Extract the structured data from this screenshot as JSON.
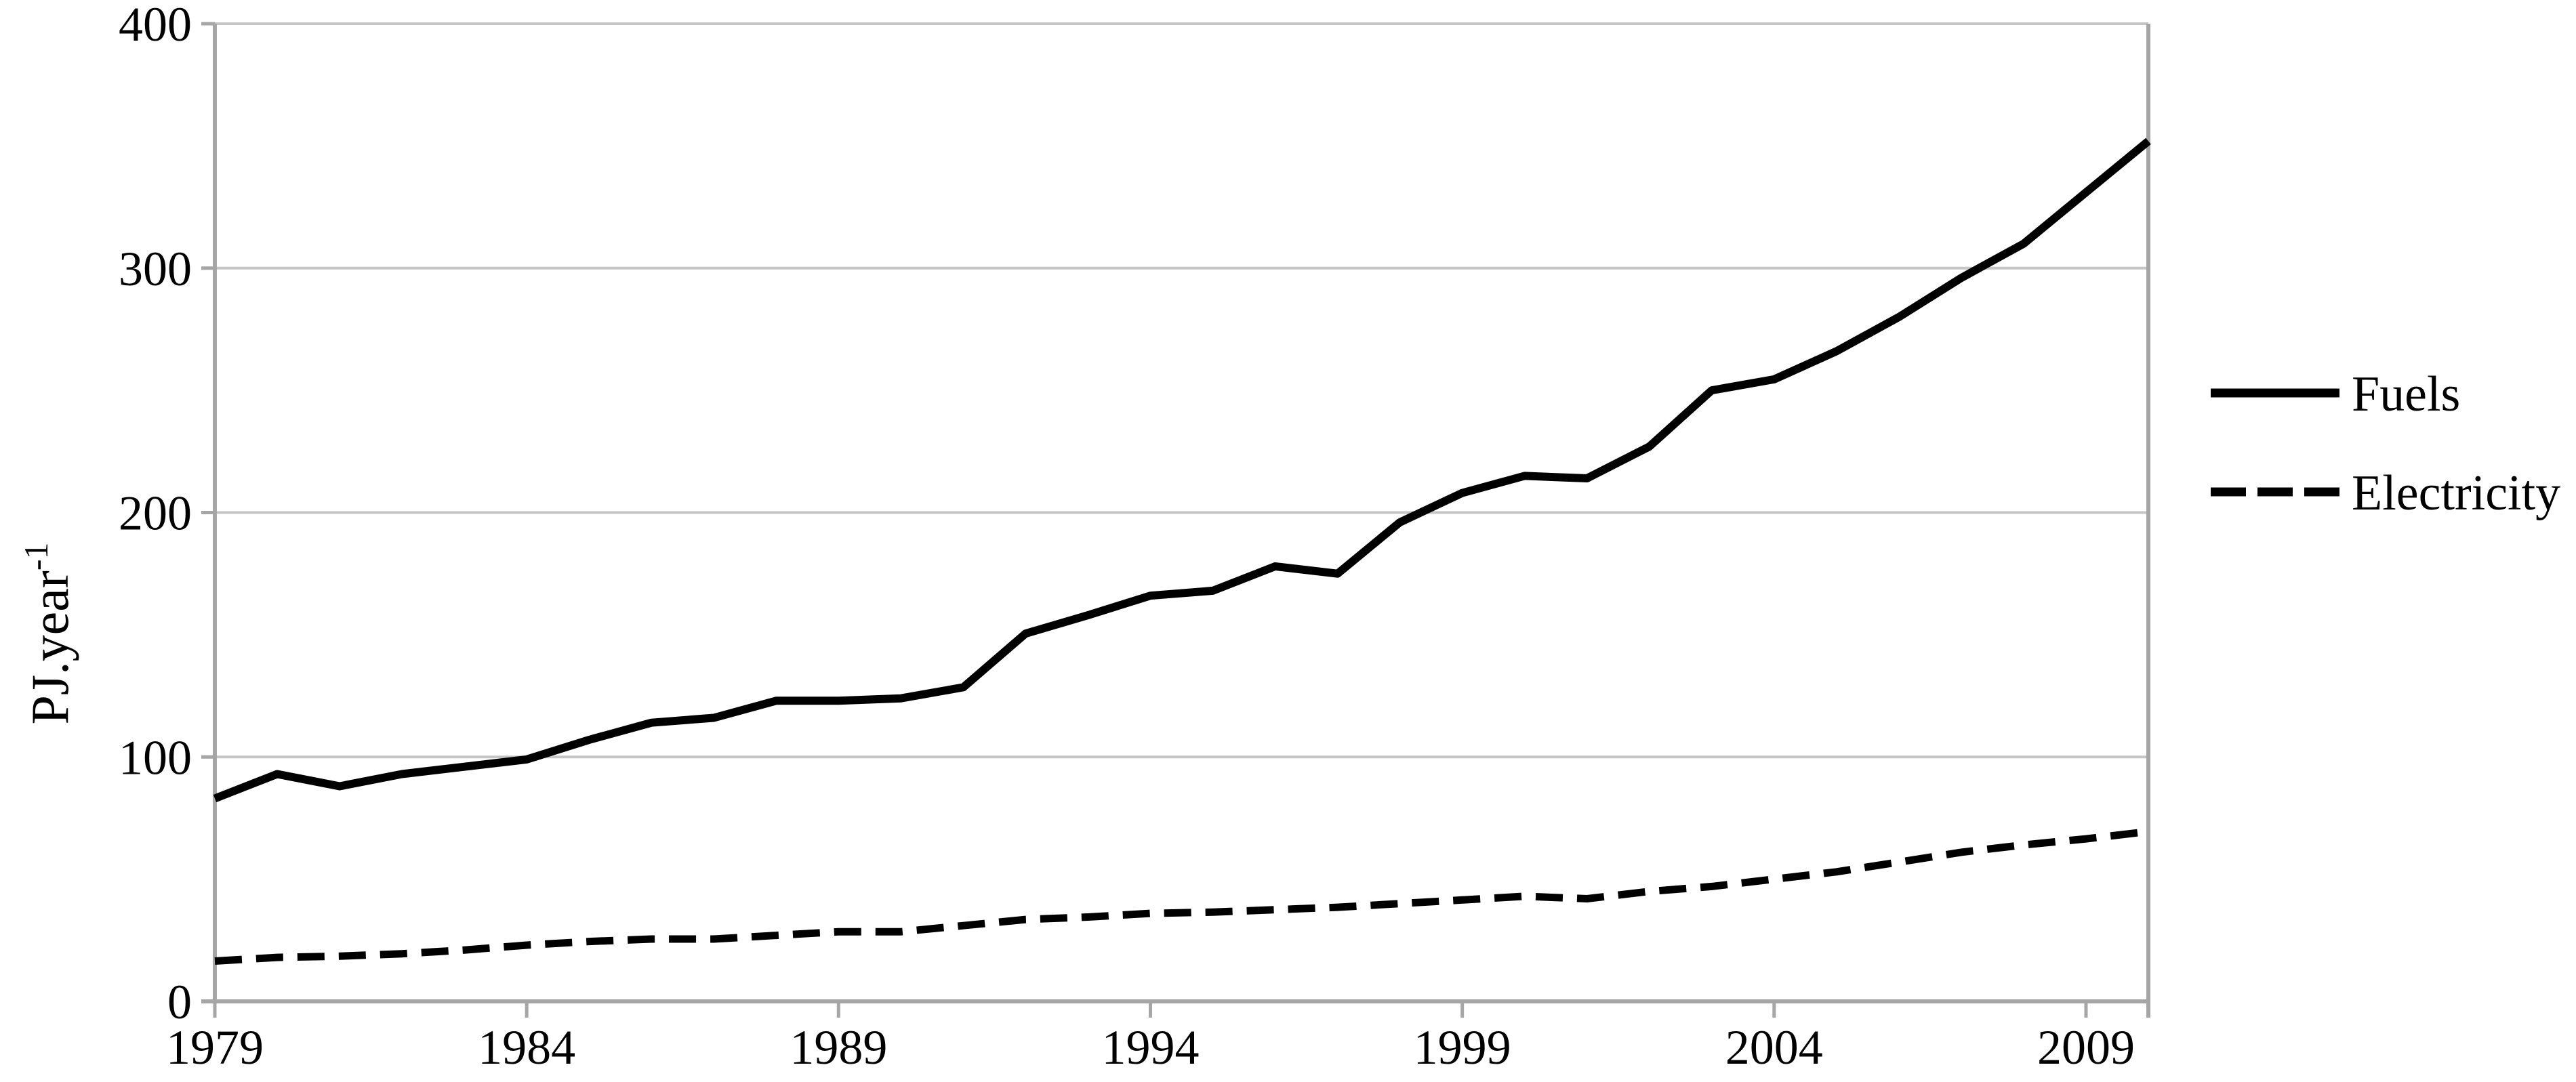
{
  "figure": {
    "background": "#ffffff"
  },
  "colors": {
    "axis": "#a6a6a6",
    "gridline": "#c6c6c6",
    "series_line": "#000000",
    "text": "#000000"
  },
  "chart_data": {
    "type": "line",
    "title": "",
    "xlabel": "",
    "ylabel": {
      "base": "PJ.year",
      "superscript": "-1"
    },
    "grid": "horizontal",
    "legend_position": "right-outside",
    "xlim": [
      1979,
      2010
    ],
    "ylim": [
      0,
      400
    ],
    "x_ticks": [
      1979,
      1984,
      1989,
      1994,
      1999,
      2004,
      2009
    ],
    "y_ticks": [
      0,
      100,
      200,
      300,
      400
    ],
    "x": [
      1979,
      1980,
      1981,
      1982,
      1983,
      1984,
      1985,
      1986,
      1987,
      1988,
      1989,
      1990,
      1991,
      1992,
      1993,
      1994,
      1995,
      1996,
      1997,
      1998,
      1999,
      2000,
      2001,
      2002,
      2003,
      2004,
      2005,
      2006,
      2007,
      2008,
      2009,
      2010
    ],
    "series": [
      {
        "name": "Fuels",
        "style": "solid",
        "color": "#000000",
        "values": [
          83,
          93,
          88,
          93,
          96,
          99,
          107,
          114,
          116,
          123,
          123,
          124,
          128.5,
          150.5,
          158,
          166,
          168,
          178,
          175,
          196,
          208,
          215,
          214,
          227,
          250,
          254.5,
          266,
          280,
          296,
          310,
          331,
          352
        ]
      },
      {
        "name": "Electricity",
        "style": "dashed",
        "color": "#000000",
        "values": [
          16.5,
          18,
          18.5,
          19.5,
          21,
          23,
          24.5,
          25.5,
          25.5,
          27,
          28.5,
          28.5,
          31,
          33.5,
          34.5,
          36,
          36.5,
          37.5,
          38.5,
          40,
          41.5,
          43,
          42,
          45,
          47,
          50,
          53,
          57,
          61,
          64,
          66.5,
          69.5
        ]
      }
    ]
  }
}
